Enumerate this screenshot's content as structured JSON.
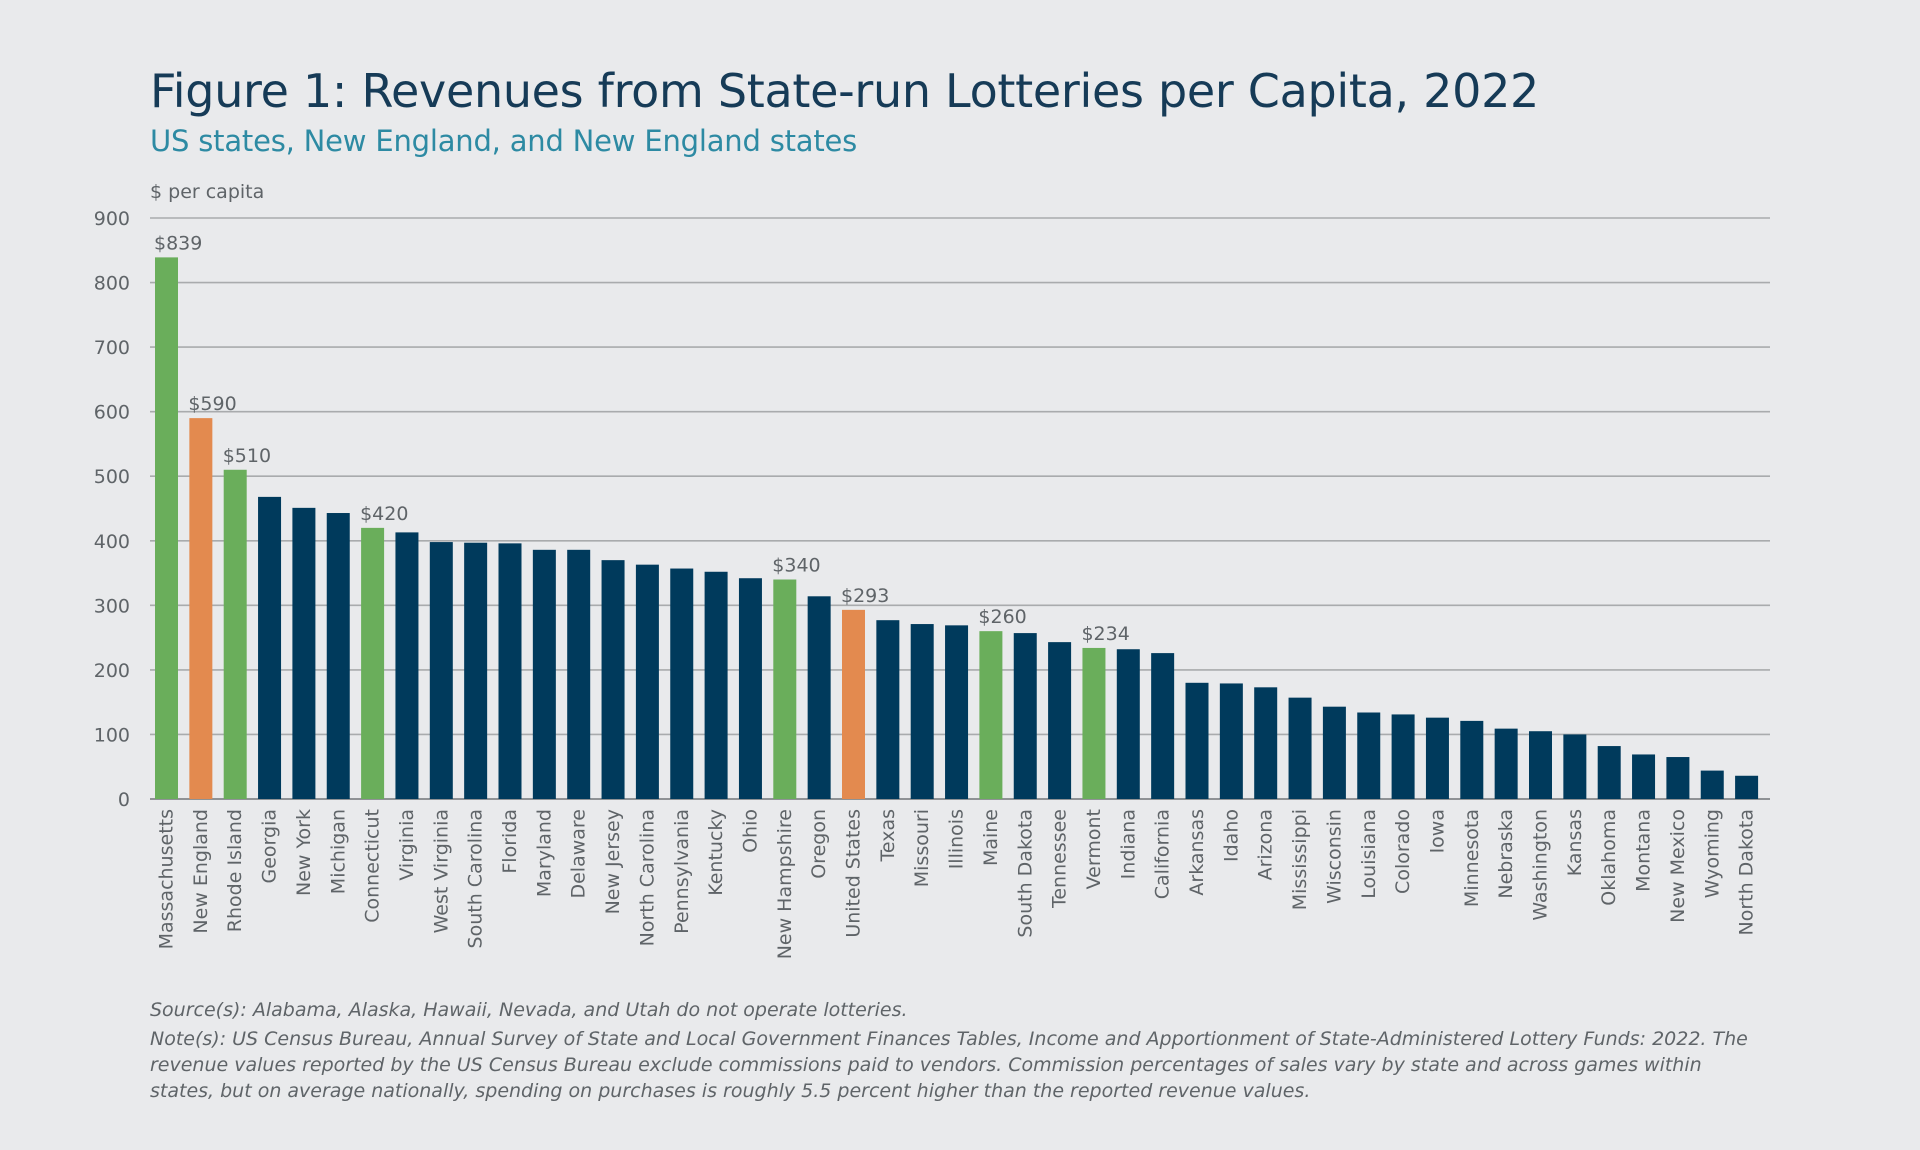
{
  "title": "Figure 1: Revenues from State-run Lotteries per Capita, 2022",
  "subtitle": "US states, New England, and New England states",
  "notes": {
    "source": "Source(s): Alabama, Alaska, Hawaii, Nevada, and Utah do not operate lotteries.",
    "note": "Note(s): US Census Bureau, Annual Survey of State and Local Government Finances Tables, Income and Apportionment of State-Administered Lottery Funds: 2022. The revenue values reported by the US Census Bureau exclude commissions paid to vendors. Commission percentages of sales vary by state and across games within states, but on average nationally, spending on purchases is roughly 5.5 percent higher than the reported revenue values."
  },
  "colors": {
    "default_bar": "#003a5c",
    "new_england_state": "#6aae5b",
    "aggregate": "#e38a4f",
    "gridline": "#a9abad",
    "axis_text": "#5f6468"
  },
  "chart_data": {
    "type": "bar",
    "ylabel": "$ per capita",
    "ylim": [
      0,
      900
    ],
    "yticks": [
      0,
      100,
      200,
      300,
      400,
      500,
      600,
      700,
      800,
      900
    ],
    "grid": true,
    "categories": [
      "Massachusetts",
      "New England",
      "Rhode Island",
      "Georgia",
      "New York",
      "Michigan",
      "Connecticut",
      "Virginia",
      "West Virginia",
      "South Carolina",
      "Florida",
      "Maryland",
      "Delaware",
      "New Jersey",
      "North Carolina",
      "Pennsylvania",
      "Kentucky",
      "Ohio",
      "New Hampshire",
      "Oregon",
      "United States",
      "Texas",
      "Missouri",
      "Illinois",
      "Maine",
      "South Dakota",
      "Tennessee",
      "Vermont",
      "Indiana",
      "California",
      "Arkansas",
      "Idaho",
      "Arizona",
      "Mississippi",
      "Wisconsin",
      "Louisiana",
      "Colorado",
      "Iowa",
      "Minnesota",
      "Nebraska",
      "Washington",
      "Kansas",
      "Oklahoma",
      "Montana",
      "New Mexico",
      "Wyoming",
      "North Dakota"
    ],
    "values": [
      839,
      590,
      510,
      468,
      451,
      443,
      420,
      413,
      398,
      397,
      396,
      386,
      386,
      370,
      363,
      357,
      352,
      342,
      340,
      314,
      293,
      277,
      271,
      269,
      260,
      257,
      243,
      234,
      232,
      226,
      180,
      179,
      173,
      157,
      143,
      134,
      131,
      126,
      121,
      109,
      105,
      100,
      82,
      69,
      65,
      44,
      36
    ],
    "groups": [
      "ne_state",
      "aggregate",
      "ne_state",
      "state",
      "state",
      "state",
      "ne_state",
      "state",
      "state",
      "state",
      "state",
      "state",
      "state",
      "state",
      "state",
      "state",
      "state",
      "state",
      "ne_state",
      "state",
      "aggregate",
      "state",
      "state",
      "state",
      "ne_state",
      "state",
      "state",
      "ne_state",
      "state",
      "state",
      "state",
      "state",
      "state",
      "state",
      "state",
      "state",
      "state",
      "state",
      "state",
      "state",
      "state",
      "state",
      "state",
      "state",
      "state",
      "state",
      "state"
    ],
    "data_labels": {
      "Massachusetts": "$839",
      "New England": "$590",
      "Rhode Island": "$510",
      "Connecticut": "$420",
      "New Hampshire": "$340",
      "United States": "$293",
      "Maine": "$260",
      "Vermont": "$234"
    }
  }
}
